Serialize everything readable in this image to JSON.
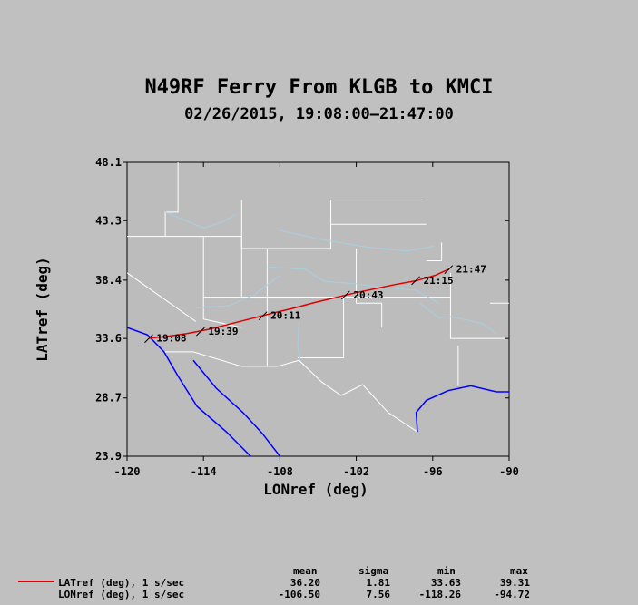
{
  "title": "N49RF Ferry From KLGB to KMCI",
  "subtitle": "02/26/2015, 19:08:00–21:47:00",
  "colors": {
    "background": "#c0c0c0",
    "plot_background": "#bcbcbc",
    "track": "#e00000",
    "borders": "#ffffff",
    "rivers": "#a8d0e0",
    "coast_water": "#0000ff"
  },
  "chart_data": {
    "type": "line",
    "xlabel": "LONref (deg)",
    "ylabel": "LATref (deg)",
    "xlim": [
      -120,
      -90
    ],
    "ylim": [
      23.9,
      48.1
    ],
    "x_ticks": [
      "-120",
      "-114",
      "-108",
      "-102",
      "-96",
      "-90"
    ],
    "y_ticks": [
      "48.1",
      "43.3",
      "38.4",
      "33.6",
      "28.7",
      "23.9"
    ],
    "grid": false,
    "series": [
      {
        "name": "LATref (deg), 1 s/sec",
        "x": [
          -118.26,
          -117.0,
          -115.3,
          -113.6,
          -111.9,
          -110.2,
          -108.5,
          -106.9,
          -105.3,
          -103.7,
          -102.1,
          -100.5,
          -98.9,
          -97.3,
          -95.8,
          -94.72
        ],
        "y": [
          33.63,
          33.75,
          34.0,
          34.35,
          34.8,
          35.25,
          35.7,
          36.1,
          36.55,
          36.95,
          37.35,
          37.7,
          38.05,
          38.35,
          38.8,
          39.31
        ]
      }
    ],
    "time_labels": [
      {
        "text": "19:08",
        "lon": -118.26,
        "lat": 33.63
      },
      {
        "text": "19:39",
        "lon": -114.2,
        "lat": 34.2
      },
      {
        "text": "20:11",
        "lon": -109.3,
        "lat": 35.5
      },
      {
        "text": "20:43",
        "lon": -102.8,
        "lat": 37.2
      },
      {
        "text": "21:15",
        "lon": -97.3,
        "lat": 38.4
      },
      {
        "text": "21:47",
        "lon": -94.72,
        "lat": 39.31
      }
    ]
  },
  "stats": {
    "headers": [
      "mean",
      "sigma",
      "min",
      "max"
    ],
    "rows": [
      {
        "label": "LATref (deg), 1 s/sec",
        "mean": "36.20",
        "sigma": "1.81",
        "min": "33.63",
        "max": "39.31"
      },
      {
        "label": "LONref (deg), 1 s/sec",
        "mean": "-106.50",
        "sigma": "7.56",
        "min": "-118.26",
        "max": "-94.72"
      }
    ]
  }
}
